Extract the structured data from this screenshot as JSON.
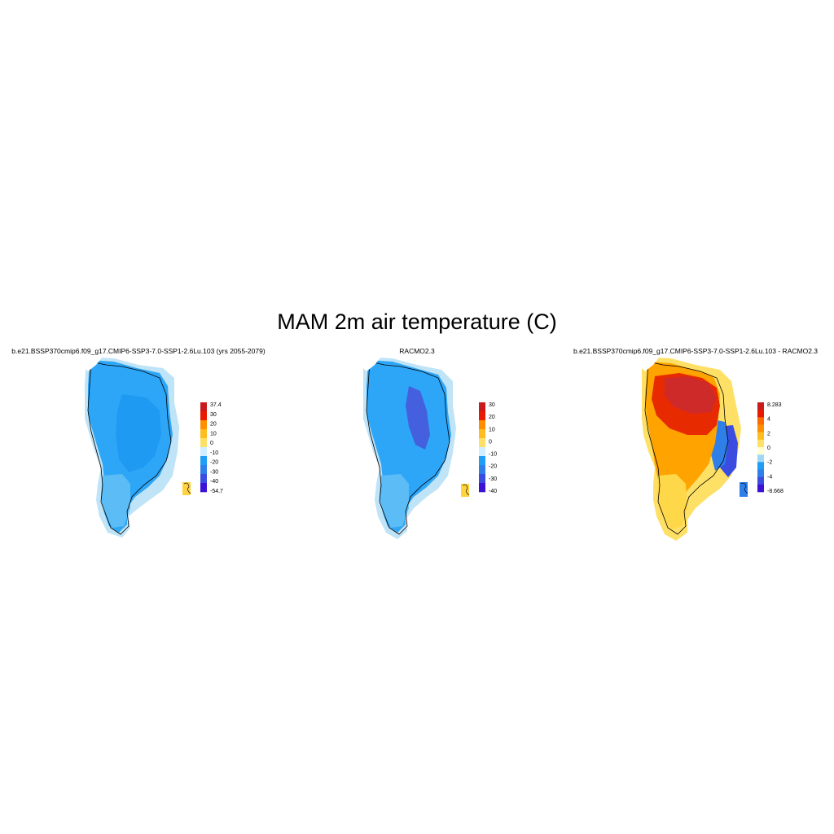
{
  "figure": {
    "title": "MAM 2m air temperature (C)"
  },
  "panels": [
    {
      "id": "model",
      "title": "b.e21.BSSP370cmip6.f09_g17.CMIP6-SSP3-7.0-SSP1-2.6Lu.103 (yrs 2055-2079)",
      "colorbar": {
        "colors": [
          "#3b12d6",
          "#3a4de0",
          "#2e7fe8",
          "#1e9ef5",
          "#cfeeff",
          "#ffe066",
          "#ffbd1f",
          "#ff8f00",
          "#e81a00",
          "#c81c1c"
        ],
        "labels": [
          "37.4",
          "30",
          "20",
          "10",
          "0",
          "-10",
          "-20",
          "-30",
          "-40",
          "-54.7"
        ]
      }
    },
    {
      "id": "racmo",
      "title": "RACMO2.3",
      "colorbar": {
        "colors": [
          "#3b12d6",
          "#3a4de0",
          "#2e7fe8",
          "#1e9ef5",
          "#cfeeff",
          "#ffe066",
          "#ffbd1f",
          "#ff8f00",
          "#e81a00",
          "#c81c1c"
        ],
        "labels": [
          "30",
          "20",
          "10",
          "0",
          "-10",
          "-20",
          "-30",
          "-40"
        ]
      }
    },
    {
      "id": "difference",
      "title": "b.e21.BSSP370cmip6.f09_g17.CMIP6-SSP3-7.0-SSP1-2.6Lu.103 - RACMO2.3",
      "colorbar": {
        "colors": [
          "#3b12d6",
          "#3a4de0",
          "#2e7fe8",
          "#1e9ef5",
          "#9fd8f5",
          "#ffffd0",
          "#ffe066",
          "#ffbd1f",
          "#ff8f00",
          "#ff6a00",
          "#e81a00",
          "#c81c1c"
        ],
        "labels": [
          "8.283",
          "4",
          "2",
          "0",
          "-2",
          "-4",
          "-8.668"
        ]
      }
    }
  ]
}
